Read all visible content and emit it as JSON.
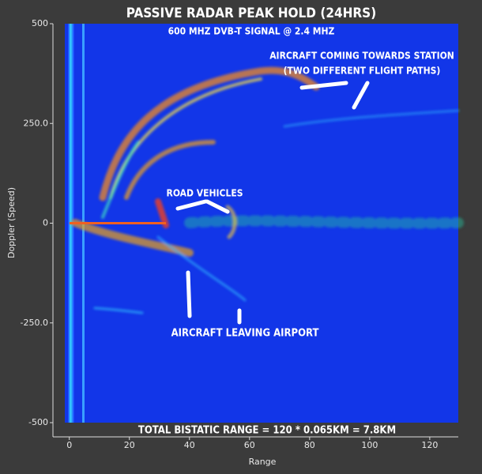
{
  "chart_data": {
    "type": "heatmap",
    "title": "PASSIVE RADAR PEAK HOLD (24HRS)",
    "subtitle": "600 MHZ DVB-T SIGNAL @ 2.4 MHZ",
    "xlabel": "Range",
    "ylabel": "Doppler (Speed)",
    "xlim": [
      -1.5,
      129.5
    ],
    "ylim": [
      -500,
      500
    ],
    "xticks": [
      0,
      20,
      40,
      60,
      80,
      100,
      120
    ],
    "yticks": [
      -500,
      {
        "value": -250,
        "label": "-250.0"
      },
      0,
      {
        "value": 250,
        "label": "250.0"
      },
      500
    ],
    "annotations": [
      "AIRCRAFT COMING TOWARDS STATION",
      "(TWO DIFFERENT FLIGHT PATHS)",
      "ROAD VEHICLES",
      "AIRCRAFT LEAVING AIRPORT",
      "TOTAL BISTATIC RANGE = 120 * 0.065KM = 7.8KM"
    ]
  }
}
